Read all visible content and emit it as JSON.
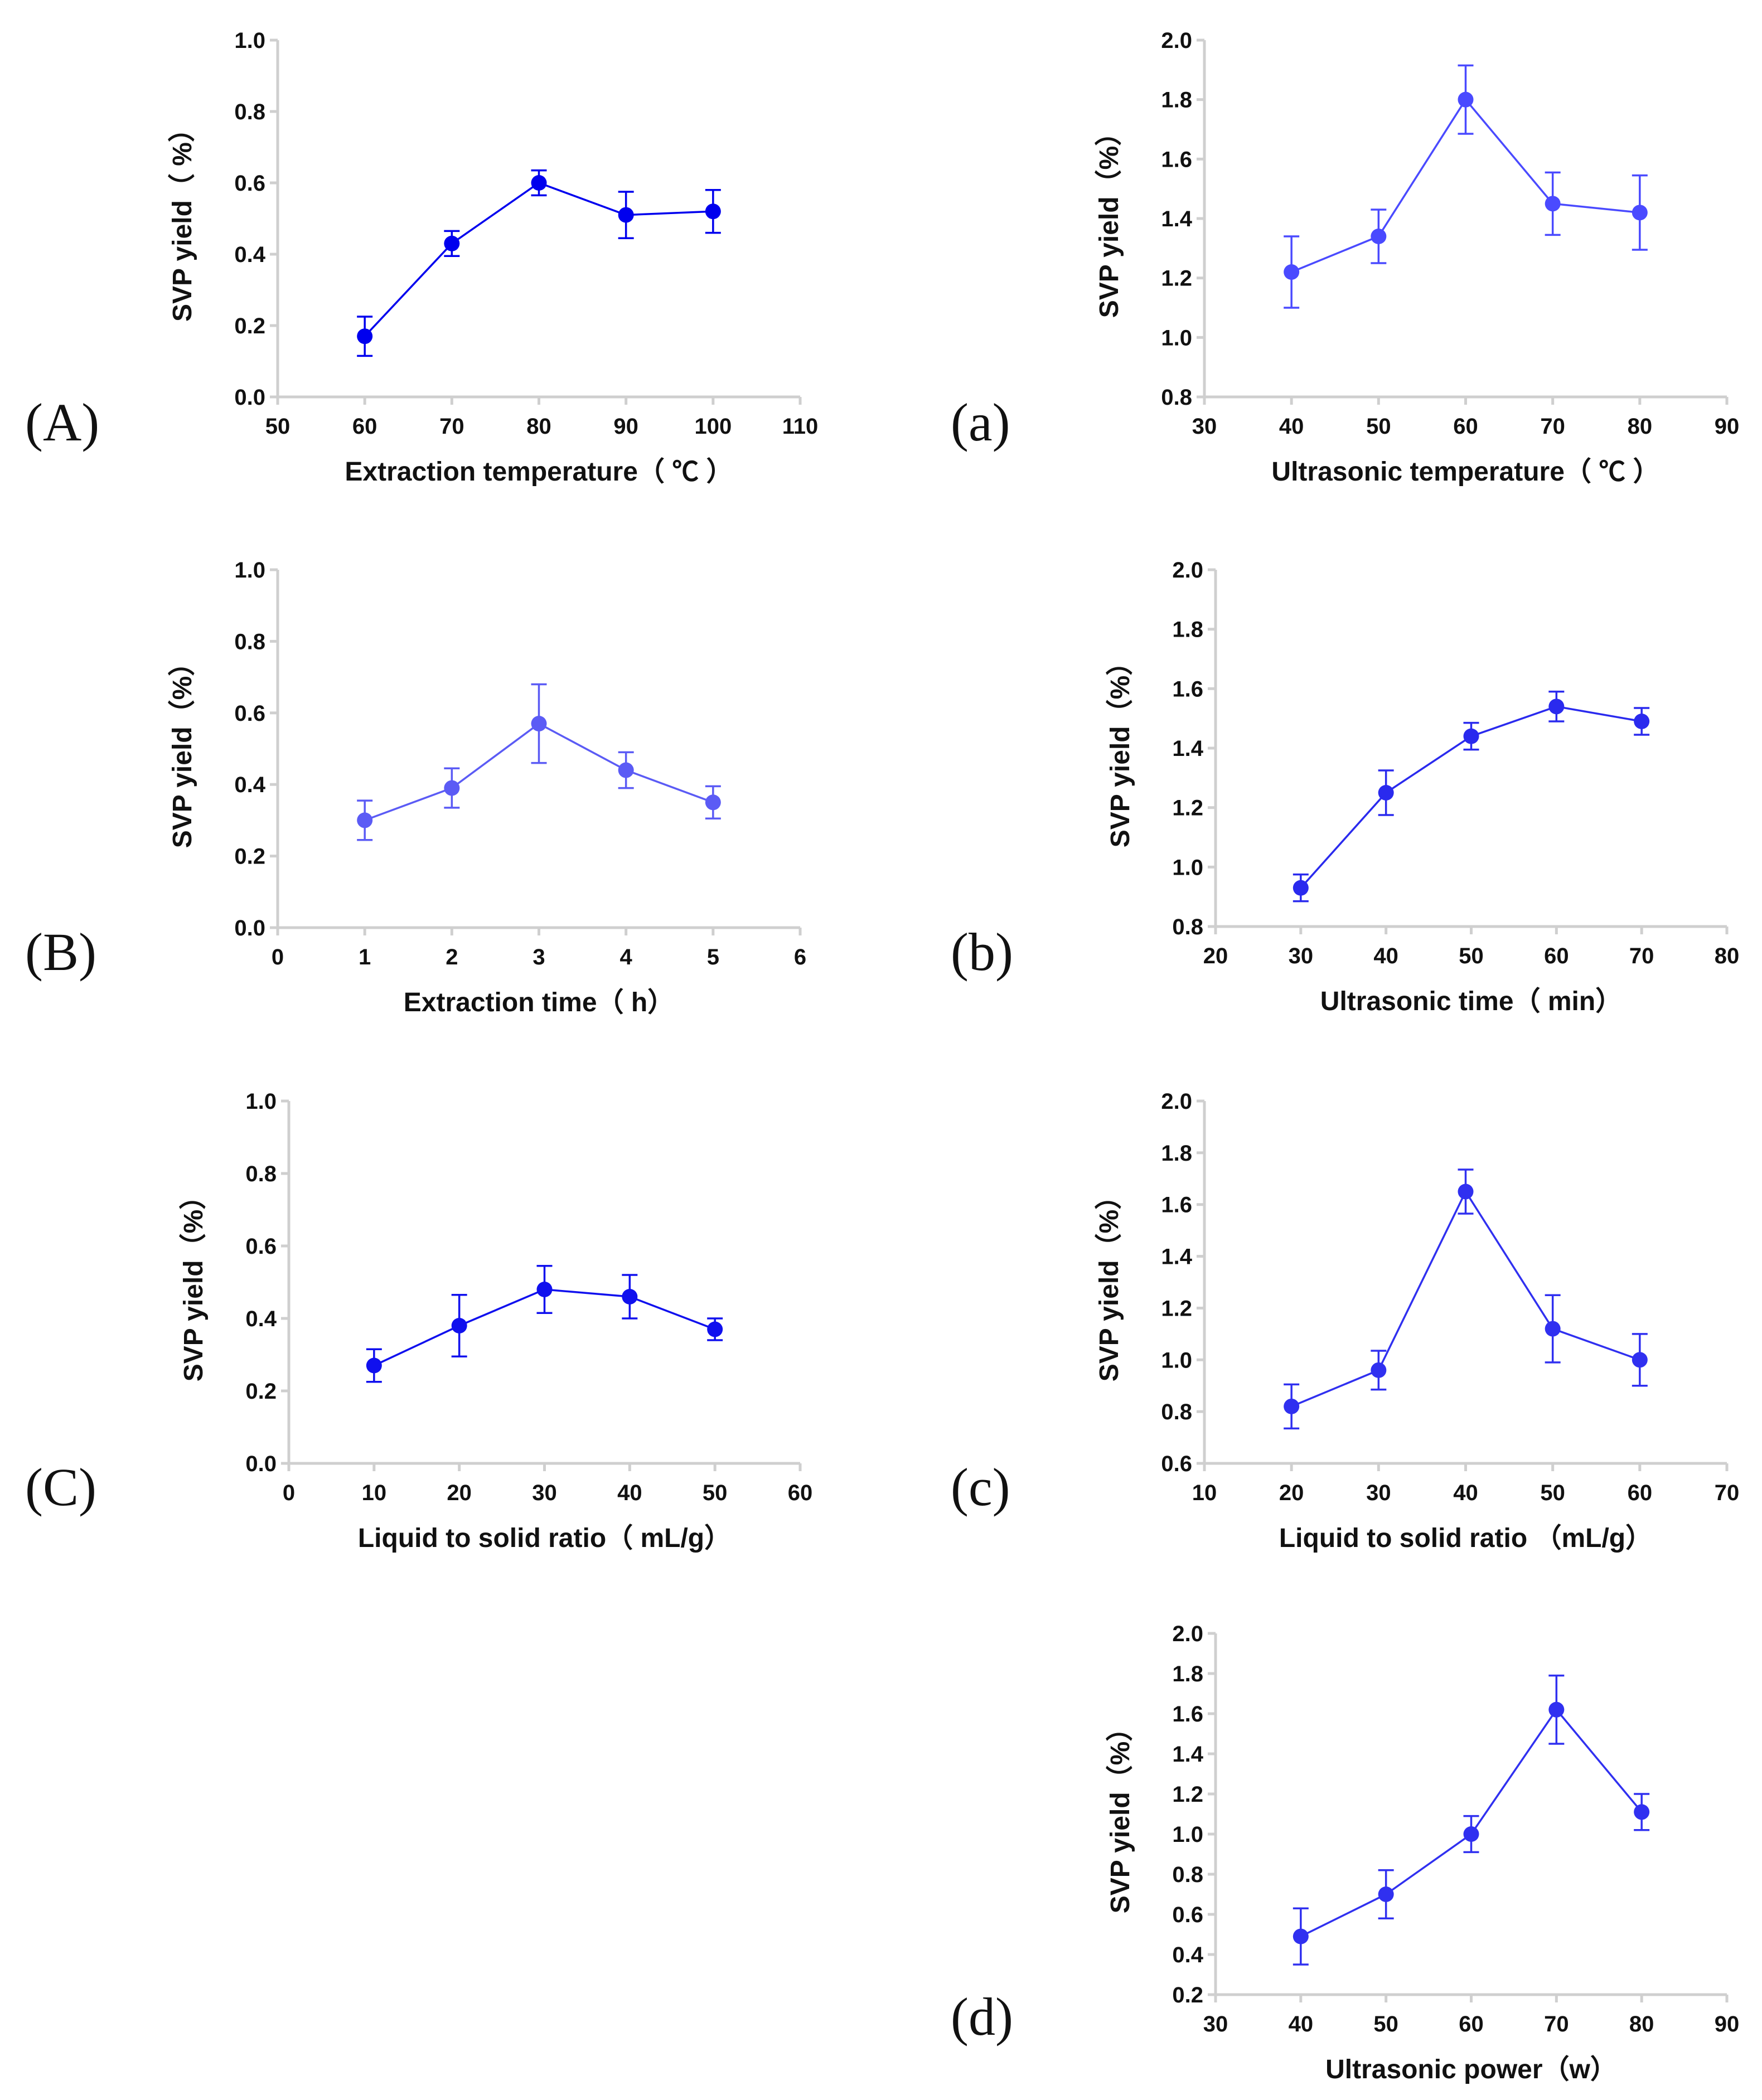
{
  "chart_data": [
    {
      "id": "A",
      "panel_label": "(A)",
      "type": "line",
      "color": "#0000ee",
      "xlabel": "Extraction temperature（ ℃ ）",
      "ylabel": "SVP yield（ %）",
      "xlim": [
        50,
        110
      ],
      "ylim": [
        0.0,
        1.0
      ],
      "xticks": [
        50,
        60,
        70,
        80,
        90,
        100,
        110
      ],
      "yticks": [
        0.0,
        0.2,
        0.4,
        0.6,
        0.8,
        1.0
      ],
      "xtick_labels": [
        "50",
        "60",
        "70",
        "80",
        "90",
        "100",
        "110"
      ],
      "ytick_labels": [
        "0.0",
        "0.2",
        "0.4",
        "0.6",
        "0.8",
        "1.0"
      ],
      "x": [
        60,
        70,
        80,
        90,
        100
      ],
      "y": [
        0.17,
        0.43,
        0.6,
        0.51,
        0.52
      ],
      "err": [
        0.055,
        0.035,
        0.035,
        0.065,
        0.06
      ]
    },
    {
      "id": "a",
      "panel_label": "(a)",
      "type": "line",
      "color": "#4a4aff",
      "xlabel": "Ultrasonic temperature（ ℃ ）",
      "ylabel": "SVP yield（%）",
      "xlim": [
        30,
        90
      ],
      "ylim": [
        0.8,
        2.0
      ],
      "xticks": [
        30,
        40,
        50,
        60,
        70,
        80,
        90
      ],
      "yticks": [
        0.8,
        1.0,
        1.2,
        1.4,
        1.6,
        1.8,
        2.0
      ],
      "xtick_labels": [
        "30",
        "40",
        "50",
        "60",
        "70",
        "80",
        "90"
      ],
      "ytick_labels": [
        "0.8",
        "1.0",
        "1.2",
        "1.4",
        "1.6",
        "1.8",
        "2.0"
      ],
      "x": [
        40,
        50,
        60,
        70,
        80
      ],
      "y": [
        1.22,
        1.34,
        1.8,
        1.45,
        1.42
      ],
      "err": [
        0.12,
        0.09,
        0.115,
        0.105,
        0.125
      ]
    },
    {
      "id": "B",
      "panel_label": "(B)",
      "type": "line",
      "color": "#5b5bf5",
      "xlabel": "Extraction time（ h）",
      "ylabel": "SVP yield（%）",
      "xlim": [
        0,
        6
      ],
      "ylim": [
        0.0,
        1.0
      ],
      "xticks": [
        0,
        1,
        2,
        3,
        4,
        5,
        6
      ],
      "yticks": [
        0.0,
        0.2,
        0.4,
        0.6,
        0.8,
        1.0
      ],
      "xtick_labels": [
        "0",
        "1",
        "2",
        "3",
        "4",
        "5",
        "6"
      ],
      "ytick_labels": [
        "0.0",
        "0.2",
        "0.4",
        "0.6",
        "0.8",
        "1.0"
      ],
      "x": [
        1,
        2,
        3,
        4,
        5
      ],
      "y": [
        0.3,
        0.39,
        0.57,
        0.44,
        0.35
      ],
      "err": [
        0.055,
        0.055,
        0.11,
        0.05,
        0.045
      ]
    },
    {
      "id": "b",
      "panel_label": "(b)",
      "type": "line",
      "color": "#2a2aee",
      "xlabel": "Ultrasonic time（ min）",
      "ylabel": "SVP yield（%）",
      "xlim": [
        20,
        80
      ],
      "ylim": [
        0.8,
        2.0
      ],
      "xticks": [
        20,
        30,
        40,
        50,
        60,
        70,
        80
      ],
      "yticks": [
        0.8,
        1.0,
        1.2,
        1.4,
        1.6,
        1.8,
        2.0
      ],
      "xtick_labels": [
        "20",
        "30",
        "40",
        "50",
        "60",
        "70",
        "80"
      ],
      "ytick_labels": [
        "0.8",
        "1.0",
        "1.2",
        "1.4",
        "1.6",
        "1.8",
        "2.0"
      ],
      "x": [
        30,
        40,
        50,
        60,
        70
      ],
      "y": [
        0.93,
        1.25,
        1.44,
        1.54,
        1.49
      ],
      "err": [
        0.045,
        0.075,
        0.045,
        0.05,
        0.045
      ]
    },
    {
      "id": "C",
      "panel_label": "(C)",
      "type": "line",
      "color": "#1010ee",
      "xlabel": "Liquid to solid ratio（ mL/g）",
      "ylabel": "SVP yield（%）",
      "xlim": [
        0,
        60
      ],
      "ylim": [
        0.0,
        1.0
      ],
      "xticks": [
        0,
        10,
        20,
        30,
        40,
        50,
        60
      ],
      "yticks": [
        0.0,
        0.2,
        0.4,
        0.6,
        0.8,
        1.0
      ],
      "xtick_labels": [
        "0",
        "10",
        "20",
        "30",
        "40",
        "50",
        "60"
      ],
      "ytick_labels": [
        "0.0",
        "0.2",
        "0.4",
        "0.6",
        "0.8",
        "1.0"
      ],
      "x": [
        10,
        20,
        30,
        40,
        50
      ],
      "y": [
        0.27,
        0.38,
        0.48,
        0.46,
        0.37
      ],
      "err": [
        0.045,
        0.085,
        0.065,
        0.06,
        0.03
      ]
    },
    {
      "id": "c",
      "panel_label": "(c)",
      "type": "line",
      "color": "#3030f0",
      "xlabel": "Liquid to solid ratio （mL/g）",
      "ylabel": "SVP yield（%）",
      "xlim": [
        10,
        70
      ],
      "ylim": [
        0.6,
        2.0
      ],
      "xticks": [
        10,
        20,
        30,
        40,
        50,
        60,
        70
      ],
      "yticks": [
        0.6,
        0.8,
        1.0,
        1.2,
        1.4,
        1.6,
        1.8,
        2.0
      ],
      "xtick_labels": [
        "10",
        "20",
        "30",
        "40",
        "50",
        "60",
        "70"
      ],
      "ytick_labels": [
        "0.6",
        "0.8",
        "1.0",
        "1.2",
        "1.4",
        "1.6",
        "1.8",
        "2.0"
      ],
      "x": [
        20,
        30,
        40,
        50,
        60
      ],
      "y": [
        0.82,
        0.96,
        1.65,
        1.12,
        1.0
      ],
      "err": [
        0.085,
        0.075,
        0.085,
        0.13,
        0.1
      ]
    },
    {
      "id": "d",
      "panel_label": "(d)",
      "type": "line",
      "color": "#3030f0",
      "xlabel": "Ultrasonic power（w）",
      "ylabel": "SVP yield（%）",
      "xlim": [
        30,
        90
      ],
      "ylim": [
        0.2,
        2.0
      ],
      "xticks": [
        30,
        40,
        50,
        60,
        70,
        80,
        90
      ],
      "yticks": [
        0.2,
        0.4,
        0.6,
        0.8,
        1.0,
        1.2,
        1.4,
        1.6,
        1.8,
        2.0
      ],
      "xtick_labels": [
        "30",
        "40",
        "50",
        "60",
        "70",
        "80",
        "90"
      ],
      "ytick_labels": [
        "0.2",
        "0.4",
        "0.6",
        "0.8",
        "1.0",
        "1.2",
        "1.4",
        "1.6",
        "1.8",
        "2.0"
      ],
      "x": [
        40,
        50,
        60,
        70,
        80
      ],
      "y": [
        0.49,
        0.7,
        1.0,
        1.62,
        1.11
      ],
      "err": [
        0.14,
        0.12,
        0.09,
        0.17,
        0.09
      ]
    }
  ]
}
